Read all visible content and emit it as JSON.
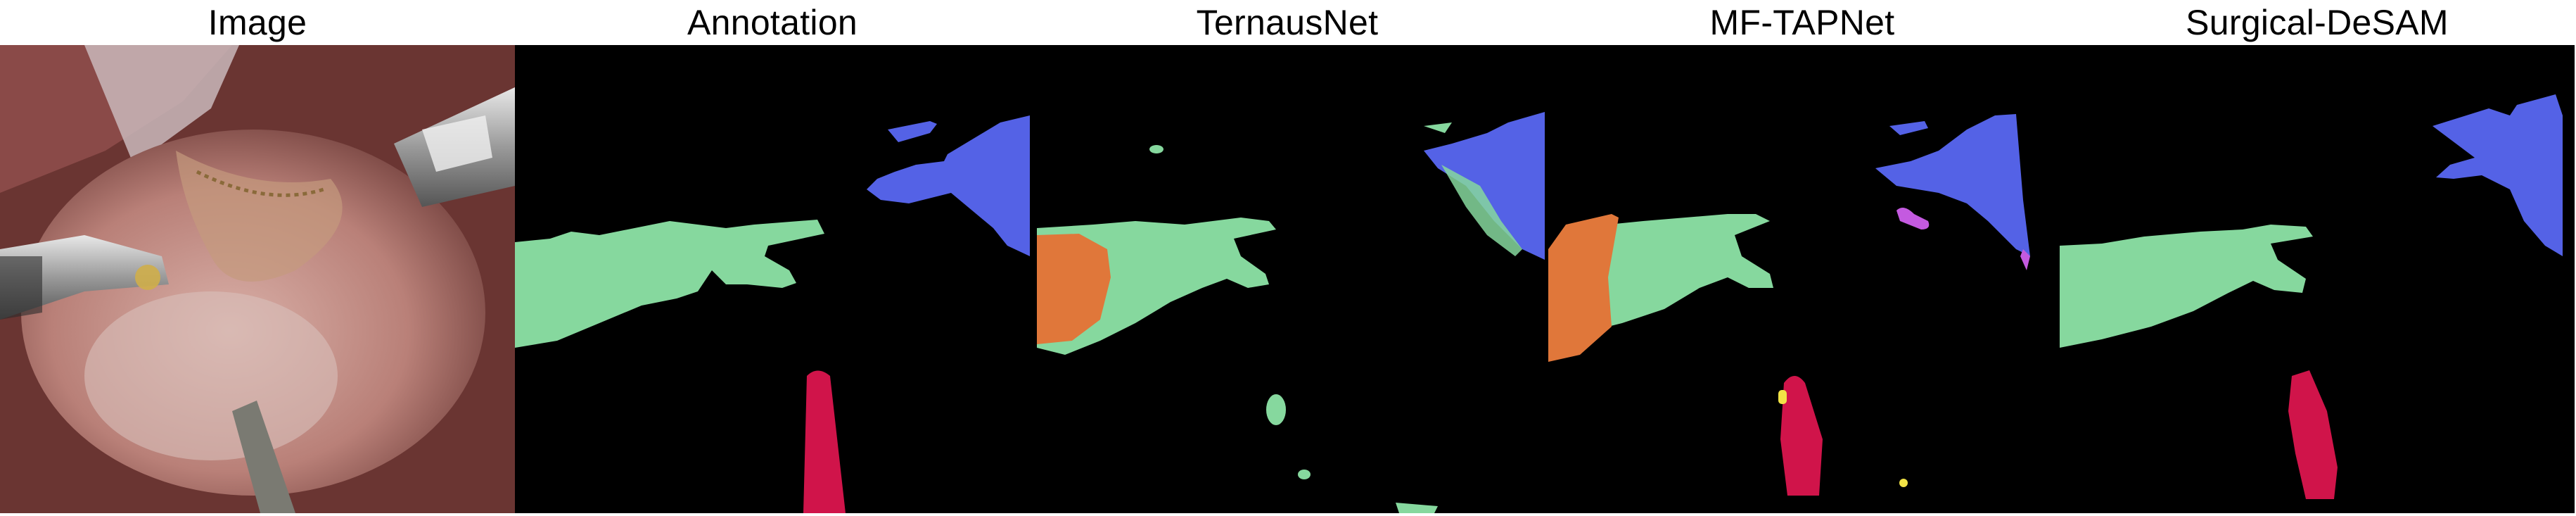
{
  "figure": {
    "columns": [
      {
        "id": "image",
        "label": "Image"
      },
      {
        "id": "annotation",
        "label": "Annotation"
      },
      {
        "id": "ternausnet",
        "label": "TernausNet"
      },
      {
        "id": "mftapnet",
        "label": "MF-TAPNet"
      },
      {
        "id": "surgicaldesam",
        "label": "Surgical-DeSAM"
      }
    ],
    "mask_colors": {
      "shaft-green": "#86d89e",
      "clasper-blue": "#5462e6",
      "tool-red": "#d0144a",
      "mis-orange": "#e0773a",
      "mis-magenta": "#c45ae0",
      "mis-yellow": "#f2e346",
      "background": "#000000"
    }
  }
}
